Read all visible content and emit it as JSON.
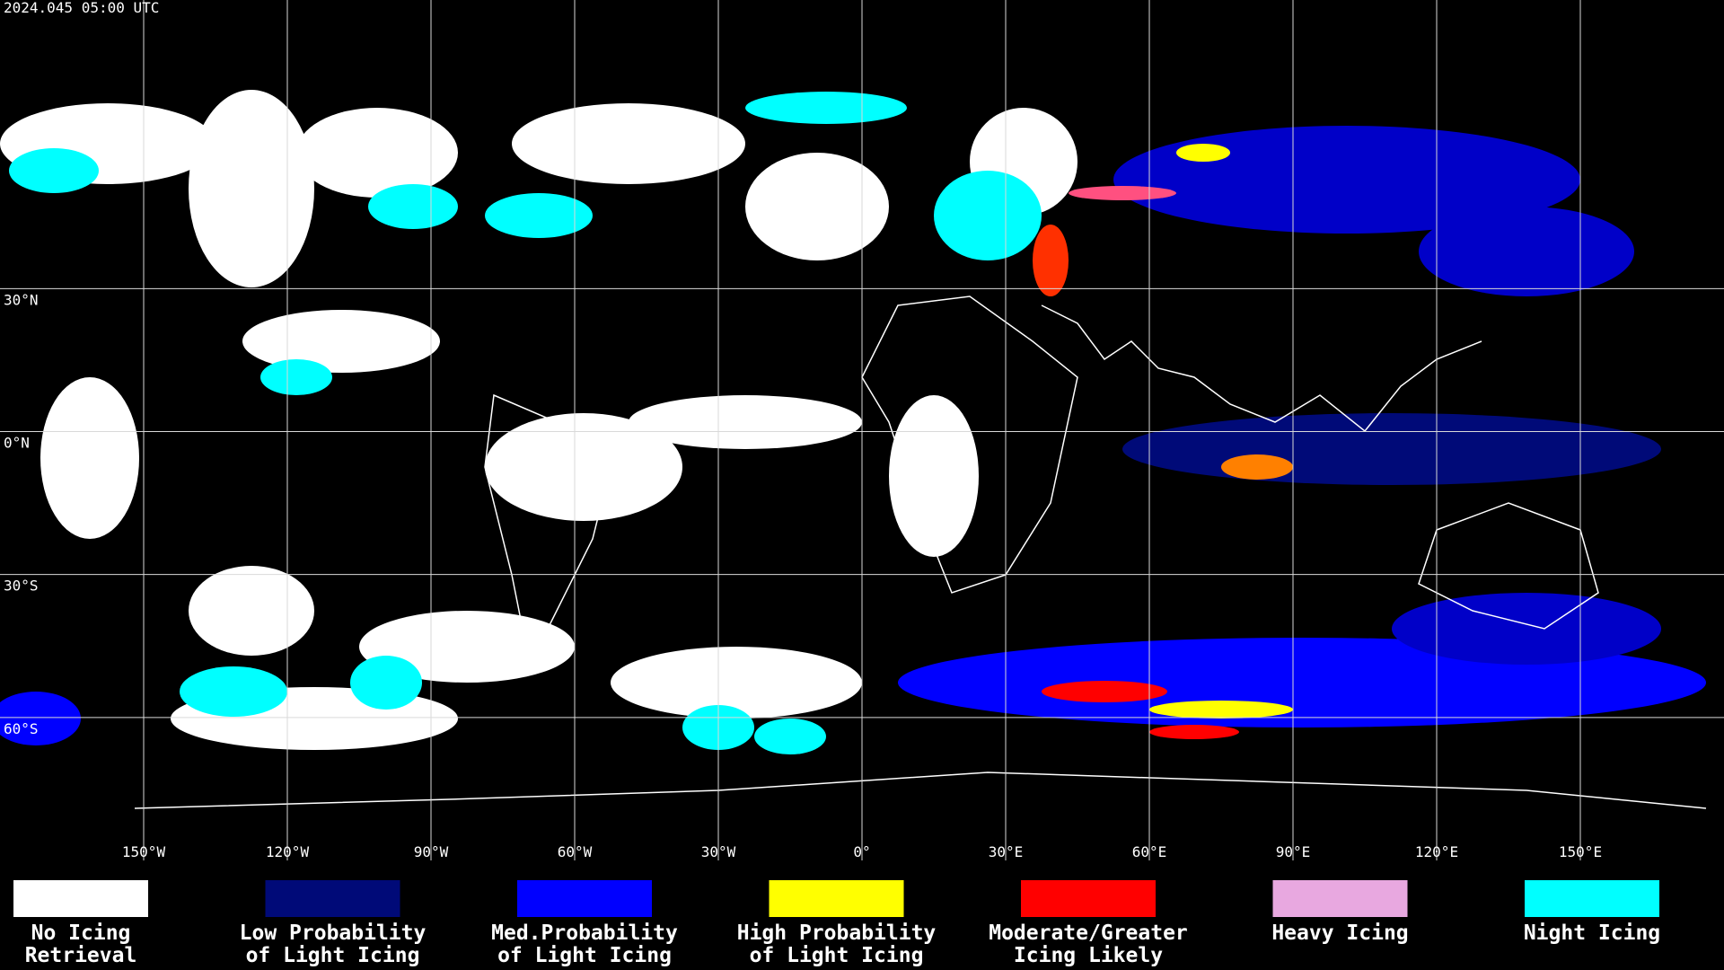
{
  "header": {
    "title": "2024.045 05:00 UTC"
  },
  "map": {
    "lat_lines": [
      {
        "value": 30,
        "label": "30°N"
      },
      {
        "value": 0,
        "label": "0°N"
      },
      {
        "value": -30,
        "label": "30°S"
      },
      {
        "value": -60,
        "label": "60°S"
      }
    ],
    "lon_lines": [
      {
        "value": -150,
        "label": "150°W"
      },
      {
        "value": -120,
        "label": "120°W"
      },
      {
        "value": -90,
        "label": "90°W"
      },
      {
        "value": -60,
        "label": "60°W"
      },
      {
        "value": -30,
        "label": "30°W"
      },
      {
        "value": 0,
        "label": "0°"
      },
      {
        "value": 30,
        "label": "30°E"
      },
      {
        "value": 60,
        "label": "60°E"
      },
      {
        "value": 90,
        "label": "90°E"
      },
      {
        "value": 120,
        "label": "120°E"
      },
      {
        "value": 150,
        "label": "150°E"
      }
    ],
    "grid_color": "#d9d9d9"
  },
  "legend": {
    "items": [
      {
        "lines": [
          "No Icing",
          "Retrieval"
        ],
        "color": "#ffffff"
      },
      {
        "lines": [
          "Low Probability",
          "of Light Icing"
        ],
        "color": "#000a78"
      },
      {
        "lines": [
          "Med.Probability",
          "of Light Icing"
        ],
        "color": "#0000ff"
      },
      {
        "lines": [
          "High Probability",
          "of Light Icing"
        ],
        "color": "#ffff00"
      },
      {
        "lines": [
          "Moderate/Greater",
          "Icing Likely"
        ],
        "color": "#ff0000"
      },
      {
        "lines": [
          "Heavy Icing"
        ],
        "color": "#e8a8e0"
      },
      {
        "lines": [
          "Night Icing"
        ],
        "color": "#00ffff"
      }
    ]
  }
}
